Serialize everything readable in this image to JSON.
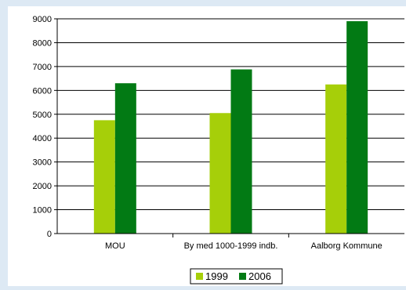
{
  "chart_data": {
    "type": "bar",
    "title": "",
    "xlabel": "",
    "ylabel": "",
    "categories": [
      "MOU",
      "By med 1000-1999 indb.",
      "Aalborg Kommune"
    ],
    "series": [
      {
        "name": "1999",
        "values": [
          4750,
          5050,
          6250
        ],
        "color": "#a6cf09"
      },
      {
        "name": "2006",
        "values": [
          6300,
          6880,
          8900
        ],
        "color": "#027a14"
      }
    ],
    "ylim": [
      0,
      9000
    ],
    "yticks": [
      0,
      1000,
      2000,
      3000,
      4000,
      5000,
      6000,
      7000,
      8000,
      9000
    ],
    "grid": true,
    "legend_position": "bottom"
  }
}
